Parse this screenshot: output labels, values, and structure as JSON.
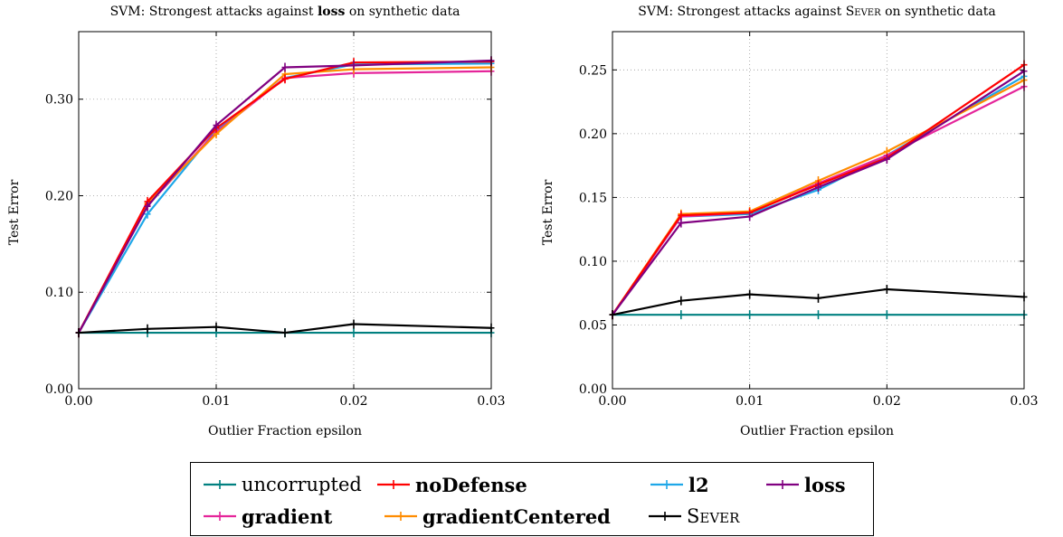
{
  "legend": {
    "items": [
      {
        "key": "uncorrupted",
        "label": "uncorrupted",
        "style": "normal"
      },
      {
        "key": "noDefense",
        "label": "noDefense",
        "style": "bold"
      },
      {
        "key": "l2",
        "label": "l2",
        "style": "bold"
      },
      {
        "key": "loss",
        "label": "loss",
        "style": "bold"
      },
      {
        "key": "gradient",
        "label": "gradient",
        "style": "bold"
      },
      {
        "key": "gradientCentered",
        "label": "gradientCentered",
        "style": "bold"
      },
      {
        "key": "sever",
        "label": "Sever",
        "style": "smallcaps"
      }
    ]
  },
  "colors": {
    "uncorrupted": "#008080",
    "noDefense": "#ff0000",
    "l2": "#1ea7e8",
    "loss": "#800080",
    "gradient": "#e5259a",
    "gradientCentered": "#ff8c00",
    "sever": "#000000"
  },
  "chart_data": [
    {
      "type": "line",
      "title": {
        "prefix": "SVM: Strongest attacks against ",
        "emphasis": "loss",
        "emphasis_style": "bold",
        "suffix": " on synthetic data"
      },
      "xlabel": "Outlier Fraction epsilon",
      "ylabel": "Test Error",
      "xlim": [
        0,
        0.03
      ],
      "ylim": [
        0,
        0.37
      ],
      "xticks": [
        0,
        0.01,
        0.02,
        0.03
      ],
      "xtick_labels": [
        "0.00",
        "0.01",
        "0.02",
        "0.03"
      ],
      "yticks": [
        0,
        0.1,
        0.2,
        0.3
      ],
      "ytick_labels": [
        "0.00",
        "0.10",
        "0.20",
        "0.30"
      ],
      "grid": true,
      "x": [
        0,
        0.005,
        0.01,
        0.015,
        0.02,
        0.03
      ],
      "series": [
        {
          "key": "uncorrupted",
          "name": "uncorrupted",
          "values": [
            0.058,
            0.058,
            0.058,
            0.058,
            0.058,
            0.058
          ]
        },
        {
          "key": "l2",
          "name": "l2",
          "values": [
            0.058,
            0.181,
            0.268,
            0.322,
            0.336,
            0.337
          ]
        },
        {
          "key": "gradient",
          "name": "gradient",
          "values": [
            0.058,
            0.19,
            0.266,
            0.322,
            0.327,
            0.329
          ]
        },
        {
          "key": "gradientCentered",
          "name": "gradientCentered",
          "values": [
            0.058,
            0.192,
            0.264,
            0.326,
            0.331,
            0.333
          ]
        },
        {
          "key": "noDefense",
          "name": "noDefense",
          "values": [
            0.058,
            0.194,
            0.27,
            0.321,
            0.338,
            0.339
          ]
        },
        {
          "key": "loss",
          "name": "loss",
          "values": [
            0.058,
            0.189,
            0.273,
            0.333,
            0.335,
            0.34
          ]
        },
        {
          "key": "sever",
          "name": "Sever",
          "values": [
            0.058,
            0.062,
            0.064,
            0.058,
            0.067,
            0.063
          ]
        }
      ]
    },
    {
      "type": "line",
      "title": {
        "prefix": "SVM: Strongest attacks against ",
        "emphasis": "Sever",
        "emphasis_style": "smallcaps",
        "suffix": " on synthetic data"
      },
      "xlabel": "Outlier Fraction epsilon",
      "ylabel": "Test Error",
      "xlim": [
        0,
        0.03
      ],
      "ylim": [
        0,
        0.28
      ],
      "xticks": [
        0,
        0.01,
        0.02,
        0.03
      ],
      "xtick_labels": [
        "0.00",
        "0.01",
        "0.02",
        "0.03"
      ],
      "yticks": [
        0,
        0.05,
        0.1,
        0.15,
        0.2,
        0.25
      ],
      "ytick_labels": [
        "0.00",
        "0.05",
        "0.10",
        "0.15",
        "0.20",
        "0.25"
      ],
      "grid": true,
      "x": [
        0,
        0.005,
        0.01,
        0.015,
        0.02,
        0.03
      ],
      "series": [
        {
          "key": "uncorrupted",
          "name": "uncorrupted",
          "values": [
            0.058,
            0.058,
            0.058,
            0.058,
            0.058,
            0.058
          ]
        },
        {
          "key": "l2",
          "name": "l2",
          "values": [
            0.058,
            0.135,
            0.137,
            0.156,
            0.183,
            0.245
          ]
        },
        {
          "key": "gradient",
          "name": "gradient",
          "values": [
            0.058,
            0.135,
            0.138,
            0.161,
            0.183,
            0.237
          ]
        },
        {
          "key": "gradientCentered",
          "name": "gradientCentered",
          "values": [
            0.058,
            0.137,
            0.139,
            0.163,
            0.186,
            0.242
          ]
        },
        {
          "key": "noDefense",
          "name": "noDefense",
          "values": [
            0.058,
            0.136,
            0.138,
            0.16,
            0.181,
            0.254
          ]
        },
        {
          "key": "loss",
          "name": "loss",
          "values": [
            0.058,
            0.13,
            0.135,
            0.158,
            0.18,
            0.249
          ]
        },
        {
          "key": "sever",
          "name": "Sever",
          "values": [
            0.058,
            0.069,
            0.074,
            0.071,
            0.078,
            0.072
          ]
        }
      ]
    }
  ]
}
